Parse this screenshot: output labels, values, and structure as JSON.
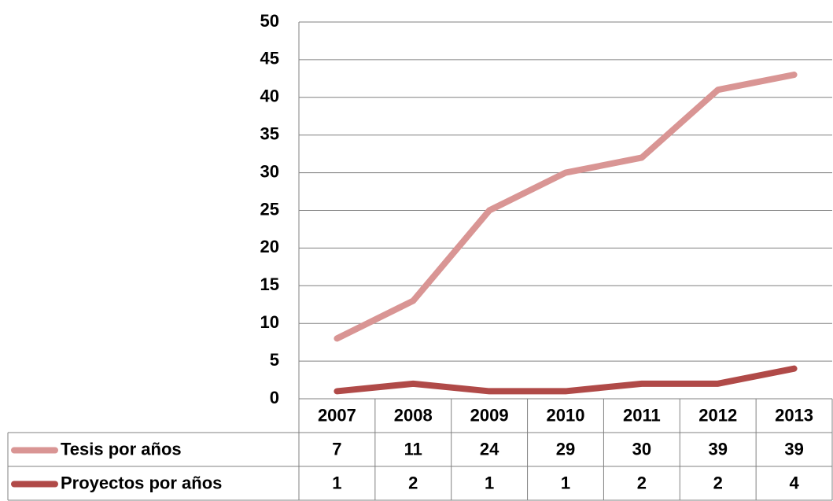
{
  "chart_data": {
    "type": "line",
    "stacked": true,
    "categories": [
      "2007",
      "2008",
      "2009",
      "2010",
      "2011",
      "2012",
      "2013"
    ],
    "series": [
      {
        "name": "Tesis por años",
        "color": "#d99594",
        "values": [
          7,
          11,
          24,
          29,
          30,
          39,
          39
        ]
      },
      {
        "name": "Proyectos por años",
        "color": "#b04a48",
        "values": [
          1,
          2,
          1,
          1,
          2,
          2,
          4
        ]
      }
    ],
    "ylim": [
      0,
      50
    ],
    "yticks": [
      0,
      5,
      10,
      15,
      20,
      25,
      30,
      35,
      40,
      45,
      50
    ],
    "grid": true
  }
}
